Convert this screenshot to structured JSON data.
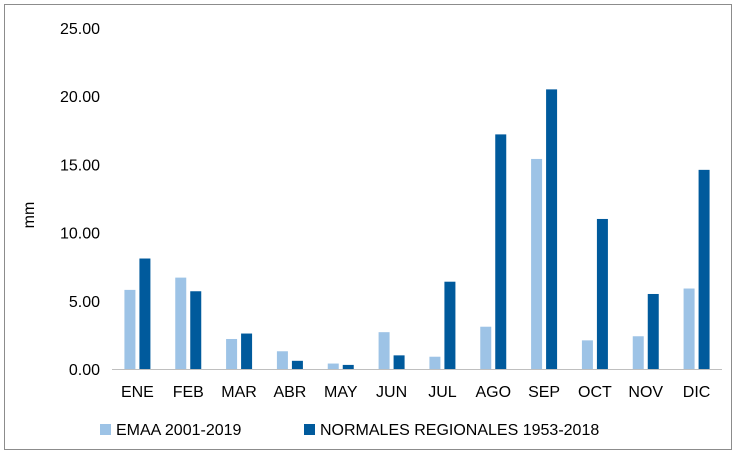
{
  "chart_data": {
    "type": "bar",
    "title": "",
    "xlabel": "",
    "ylabel": "mm",
    "ylim": [
      0,
      25
    ],
    "yticks": [
      "0.00",
      "5.00",
      "10.00",
      "15.00",
      "20.00",
      "25.00"
    ],
    "ytick_values": [
      0,
      5,
      10,
      15,
      20,
      25
    ],
    "grid": false,
    "legend_position": "bottom",
    "categories": [
      "ENE",
      "FEB",
      "MAR",
      "ABR",
      "MAY",
      "JUN",
      "JUL",
      "AGO",
      "SEP",
      "OCT",
      "NOV",
      "DIC"
    ],
    "series": [
      {
        "name": "EMAA 2001-2019",
        "color": "#9DC3E6",
        "values": [
          5.8,
          6.7,
          2.2,
          1.3,
          0.4,
          2.7,
          0.9,
          3.1,
          15.4,
          2.1,
          2.4,
          5.9
        ]
      },
      {
        "name": "NORMALES REGIONALES 1953-2018",
        "color": "#005A9C",
        "values": [
          8.1,
          5.7,
          2.6,
          0.6,
          0.3,
          1.0,
          6.4,
          17.2,
          20.5,
          11.0,
          5.5,
          14.6
        ]
      }
    ]
  }
}
